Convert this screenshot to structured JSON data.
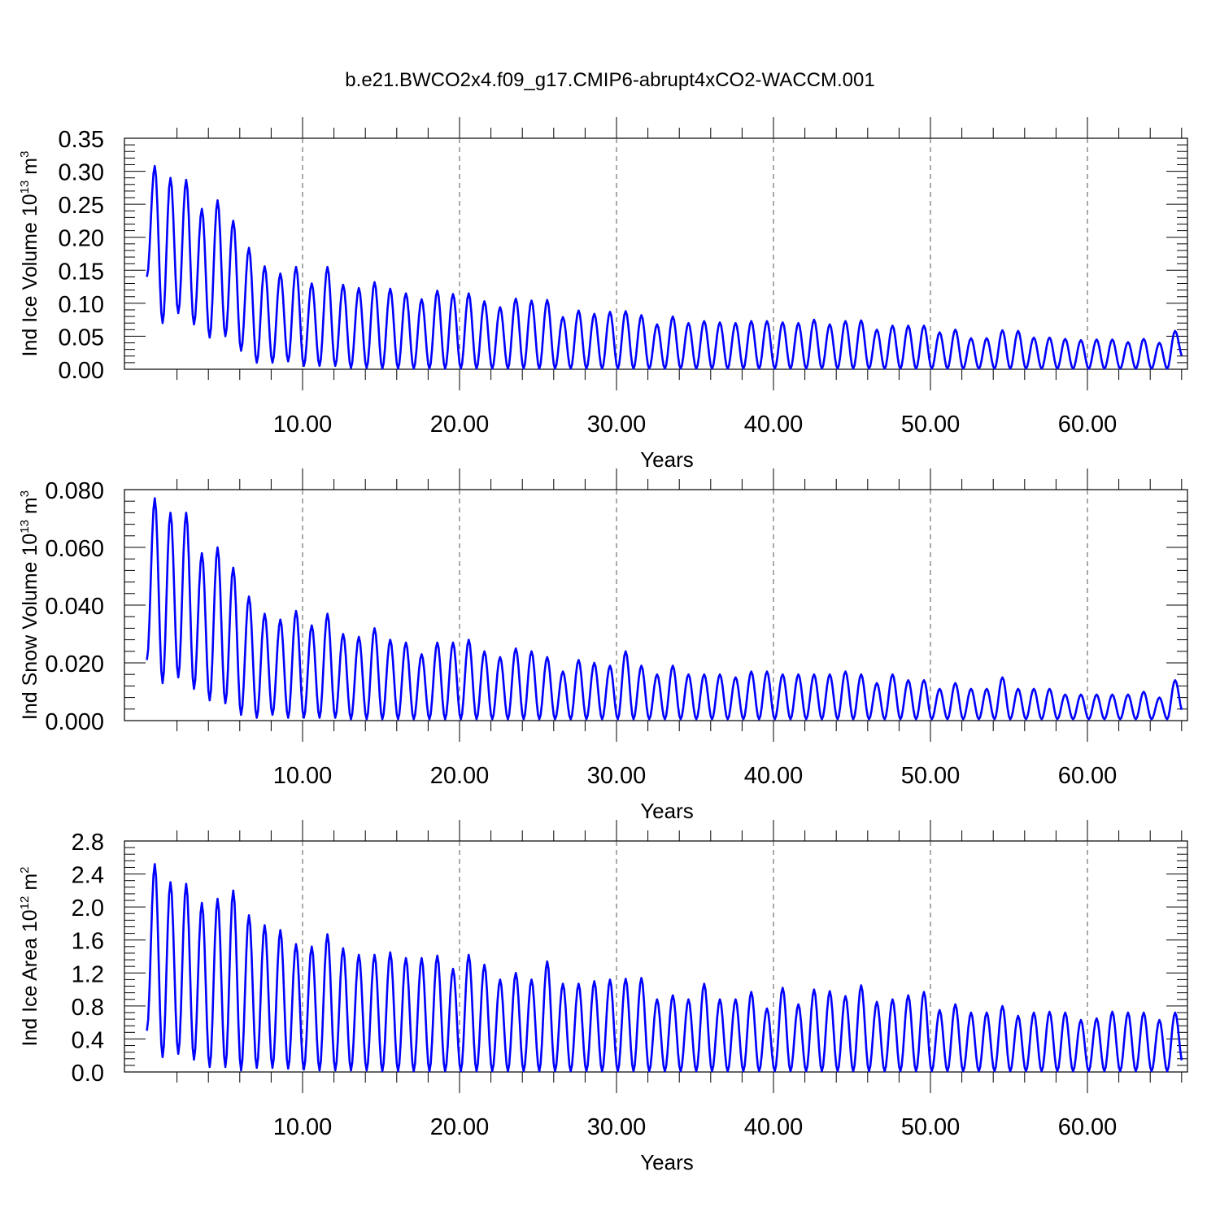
{
  "title": "b.e21.BWCO2x4.f09_g17.CMIP6-abrupt4xCO2-WACCM.001",
  "line_color": "#0000ff",
  "chart_data": [
    {
      "type": "line",
      "title": "b.e21.BWCO2x4.f09_g17.CMIP6-abrupt4xCO2-WACCM.001",
      "xlabel": "Years",
      "ylabel": {
        "main": "Ind Ice Volume 10",
        "exp": "13",
        "unit": " m",
        "unit_exp": "3"
      },
      "xlim": [
        0,
        66
      ],
      "ylim": [
        0,
        0.35
      ],
      "xticks": [
        10,
        20,
        30,
        40,
        50,
        60
      ],
      "xtick_labels": [
        "10.00",
        "20.00",
        "30.00",
        "40.00",
        "50.00",
        "60.00"
      ],
      "yticks": [
        0,
        0.05,
        0.1,
        0.15,
        0.2,
        0.25,
        0.3,
        0.35
      ],
      "ytick_labels": [
        "0.00",
        "0.05",
        "0.10",
        "0.15",
        "0.20",
        "0.25",
        "0.30",
        "0.35"
      ],
      "grid": "x-dashed",
      "series": [
        {
          "seasonal_cycle": "annual",
          "start_value": 0.14,
          "annual_max": [
            0.308,
            0.29,
            0.287,
            0.243,
            0.256,
            0.225,
            0.184,
            0.156,
            0.145,
            0.155,
            0.13,
            0.155,
            0.128,
            0.123,
            0.132,
            0.122,
            0.115,
            0.106,
            0.119,
            0.114,
            0.115,
            0.103,
            0.094,
            0.107,
            0.104,
            0.105,
            0.079,
            0.089,
            0.084,
            0.087,
            0.088,
            0.082,
            0.068,
            0.08,
            0.07,
            0.073,
            0.071,
            0.07,
            0.073,
            0.073,
            0.071,
            0.07,
            0.075,
            0.068,
            0.073,
            0.074,
            0.06,
            0.066,
            0.066,
            0.066,
            0.056,
            0.06,
            0.047,
            0.047,
            0.059,
            0.058,
            0.048,
            0.048,
            0.046,
            0.044,
            0.045,
            0.045,
            0.041,
            0.046,
            0.04,
            0.058
          ],
          "annual_min": [
            0.07,
            0.085,
            0.068,
            0.048,
            0.05,
            0.028,
            0.01,
            0.01,
            0.012,
            0.005,
            0.005,
            0.005,
            0.002,
            0.002,
            0.001,
            0.001,
            0.001,
            0.001,
            0.001,
            0.001,
            0.001,
            0.001,
            0.001,
            0.001,
            0.001,
            0.001,
            0.001,
            0.001,
            0.001,
            0.001,
            0.001,
            0.001,
            0.001,
            0.001,
            0.001,
            0.001,
            0.001,
            0.001,
            0.001,
            0.001,
            0.001,
            0.001,
            0.001,
            0.001,
            0.001,
            0.001,
            0.001,
            0.001,
            0.001,
            0.001,
            0.001,
            0.001,
            0.001,
            0.001,
            0.001,
            0.001,
            0.001,
            0.001,
            0.001,
            0.001,
            0.001,
            0.001,
            0.001,
            0.001,
            0.001,
            0.018
          ]
        }
      ]
    },
    {
      "type": "line",
      "xlabel": "Years",
      "ylabel": {
        "main": "Ind Snow Volume 10",
        "exp": "13",
        "unit": " m",
        "unit_exp": "3"
      },
      "xlim": [
        0,
        66
      ],
      "ylim": [
        0,
        0.08
      ],
      "xticks": [
        10,
        20,
        30,
        40,
        50,
        60
      ],
      "xtick_labels": [
        "10.00",
        "20.00",
        "30.00",
        "40.00",
        "50.00",
        "60.00"
      ],
      "yticks": [
        0,
        0.02,
        0.04,
        0.06,
        0.08
      ],
      "ytick_labels": [
        "0.000",
        "0.020",
        "0.040",
        "0.060",
        "0.080"
      ],
      "grid": "x-dashed",
      "series": [
        {
          "seasonal_cycle": "annual",
          "start_value": 0.021,
          "annual_max": [
            0.077,
            0.072,
            0.072,
            0.058,
            0.06,
            0.053,
            0.043,
            0.037,
            0.035,
            0.038,
            0.033,
            0.037,
            0.03,
            0.029,
            0.032,
            0.028,
            0.027,
            0.023,
            0.027,
            0.027,
            0.028,
            0.024,
            0.022,
            0.025,
            0.024,
            0.022,
            0.017,
            0.021,
            0.02,
            0.019,
            0.024,
            0.019,
            0.016,
            0.019,
            0.016,
            0.016,
            0.016,
            0.015,
            0.017,
            0.017,
            0.016,
            0.016,
            0.016,
            0.016,
            0.017,
            0.016,
            0.013,
            0.016,
            0.014,
            0.014,
            0.011,
            0.013,
            0.011,
            0.011,
            0.015,
            0.011,
            0.011,
            0.011,
            0.009,
            0.009,
            0.009,
            0.009,
            0.009,
            0.01,
            0.008,
            0.014
          ],
          "annual_min": [
            0.013,
            0.015,
            0.011,
            0.007,
            0.006,
            0.002,
            0.001,
            0.002,
            0.001,
            0.001,
            0.001,
            0.001,
            0.0005,
            0.0005,
            0.0005,
            0.0005,
            0.0005,
            0.0005,
            0.0005,
            0.0005,
            0.0005,
            0.0005,
            0.0005,
            0.0005,
            0.0005,
            0.0005,
            0.0005,
            0.0005,
            0.0005,
            0.0005,
            0.0005,
            0.0005,
            0.0005,
            0.0005,
            0.0005,
            0.0005,
            0.0005,
            0.0005,
            0.0005,
            0.0005,
            0.0005,
            0.0005,
            0.0005,
            0.0005,
            0.0005,
            0.0005,
            0.0005,
            0.0005,
            0.0005,
            0.0005,
            0.0005,
            0.0005,
            0.0005,
            0.0005,
            0.0005,
            0.0005,
            0.0005,
            0.0005,
            0.0005,
            0.0005,
            0.0005,
            0.0005,
            0.0005,
            0.0005,
            0.0005,
            0.003
          ]
        }
      ]
    },
    {
      "type": "line",
      "xlabel": "Years",
      "ylabel": {
        "main": "Ind Ice Area 10",
        "exp": "12",
        "unit": " m",
        "unit_exp": "2"
      },
      "xlim": [
        0,
        66
      ],
      "ylim": [
        0,
        2.8
      ],
      "xticks": [
        10,
        20,
        30,
        40,
        50,
        60
      ],
      "xtick_labels": [
        "10.00",
        "20.00",
        "30.00",
        "40.00",
        "50.00",
        "60.00"
      ],
      "yticks": [
        0,
        0.4,
        0.8,
        1.2,
        1.6,
        2.0,
        2.4,
        2.8
      ],
      "ytick_labels": [
        "0.0",
        "0.4",
        "0.8",
        "1.2",
        "1.6",
        "2.0",
        "2.4",
        "2.8"
      ],
      "grid": "x-dashed",
      "series": [
        {
          "seasonal_cycle": "annual",
          "start_value": 0.5,
          "annual_max": [
            2.52,
            2.3,
            2.28,
            2.05,
            2.1,
            2.2,
            1.9,
            1.78,
            1.72,
            1.55,
            1.52,
            1.67,
            1.5,
            1.42,
            1.42,
            1.45,
            1.38,
            1.38,
            1.41,
            1.25,
            1.42,
            1.3,
            1.12,
            1.2,
            1.12,
            1.34,
            1.07,
            1.07,
            1.1,
            1.12,
            1.13,
            1.14,
            0.88,
            0.93,
            0.88,
            1.07,
            0.88,
            0.88,
            0.97,
            0.77,
            1.02,
            0.82,
            1.0,
            0.98,
            0.92,
            1.05,
            0.85,
            0.88,
            0.93,
            0.97,
            0.75,
            0.82,
            0.72,
            0.72,
            0.8,
            0.68,
            0.72,
            0.73,
            0.72,
            0.63,
            0.65,
            0.73,
            0.72,
            0.72,
            0.63,
            0.72
          ],
          "annual_min": [
            0.18,
            0.22,
            0.15,
            0.06,
            0.06,
            0.02,
            0.05,
            0.05,
            0.04,
            0.03,
            0.02,
            0.02,
            0.02,
            0.02,
            0.01,
            0.01,
            0.01,
            0.01,
            0.01,
            0.01,
            0.01,
            0.01,
            0.01,
            0.01,
            0.01,
            0.01,
            0.01,
            0.01,
            0.01,
            0.01,
            0.01,
            0.01,
            0.01,
            0.01,
            0.01,
            0.01,
            0.01,
            0.01,
            0.01,
            0.01,
            0.01,
            0.01,
            0.01,
            0.01,
            0.01,
            0.01,
            0.01,
            0.01,
            0.01,
            0.01,
            0.01,
            0.01,
            0.01,
            0.01,
            0.01,
            0.01,
            0.01,
            0.01,
            0.01,
            0.01,
            0.01,
            0.01,
            0.01,
            0.01,
            0.01,
            0.1
          ]
        }
      ]
    }
  ]
}
